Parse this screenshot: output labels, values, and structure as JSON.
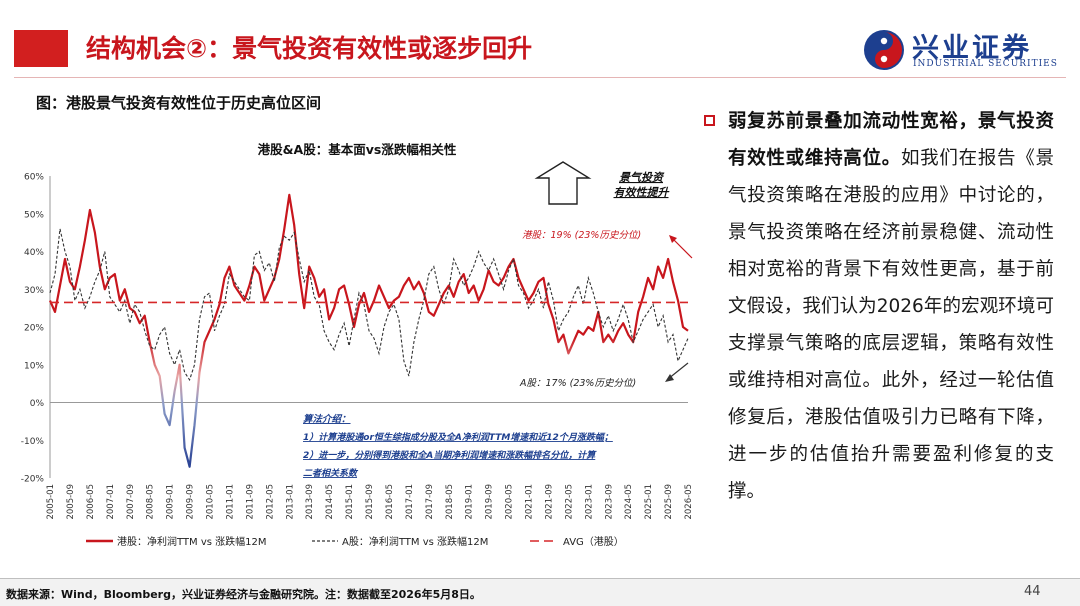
{
  "slide_title": "结构机会②：景气投资有效性或逐步回升",
  "logo": {
    "name_cn": "兴业证券",
    "name_en": "INDUSTRIAL SECURITIES"
  },
  "figure_caption": "图：港股景气投资有效性位于历史高位区间",
  "right_panel": {
    "headline": "弱复苏前景叠加流动性宽裕，景气投资有效性或维持高位。",
    "body": "如我们在报告《景气投资策略在港股的应用》中讨论的，景气投资策略在经济前景稳健、流动性相对宽裕的背景下有效性更高，基于前文假设，我们认为2026年的宏观环境可支撑景气策略的底层逻辑，策略有效性或维持相对高位。此外，经过一轮估值修复后，港股估值吸引力已略有下降，进一步的估值抬升需要盈利修复的支撑。"
  },
  "footer": {
    "source": "数据来源：Wind，Bloomberg，兴业证券经济与金融研究院。注：数据截至2026年5月8日。",
    "page": "44"
  },
  "colors": {
    "accent": "#c8161d",
    "hk_line": "#c8161d",
    "a_line": "#333333",
    "avg_line": "#d62728",
    "logo_blue": "#1d3f8f"
  },
  "chart_data": {
    "type": "line",
    "title": "港股&A股：基本面vs涨跌幅相关性",
    "ylim": [
      -0.2,
      0.6
    ],
    "yticks": [
      -0.2,
      -0.1,
      0.0,
      0.1,
      0.2,
      0.3,
      0.4,
      0.5,
      0.6
    ],
    "ytick_labels": [
      "-20%",
      "-10%",
      "0%",
      "10%",
      "20%",
      "30%",
      "40%",
      "50%",
      "60%"
    ],
    "xlim": [
      "2005-01",
      "2026-05"
    ],
    "xtick_labels": [
      "2005-01",
      "2005-09",
      "2006-05",
      "2007-01",
      "2007-09",
      "2008-05",
      "2009-01",
      "2009-09",
      "2010-05",
      "2011-01",
      "2011-09",
      "2012-05",
      "2013-01",
      "2013-09",
      "2014-05",
      "2015-01",
      "2015-09",
      "2016-05",
      "2017-01",
      "2017-09",
      "2018-05",
      "2019-01",
      "2019-09",
      "2020-05",
      "2021-01",
      "2021-09",
      "2022-05",
      "2023-01",
      "2023-09",
      "2024-05",
      "2025-01",
      "2025-09",
      "2026-05"
    ],
    "x": [
      "2005-01",
      "2005-03",
      "2005-05",
      "2005-07",
      "2005-09",
      "2005-11",
      "2006-01",
      "2006-03",
      "2006-05",
      "2006-07",
      "2006-09",
      "2006-11",
      "2007-01",
      "2007-03",
      "2007-05",
      "2007-07",
      "2007-09",
      "2007-11",
      "2008-01",
      "2008-03",
      "2008-05",
      "2008-07",
      "2008-09",
      "2008-11",
      "2009-01",
      "2009-03",
      "2009-05",
      "2009-07",
      "2009-09",
      "2009-11",
      "2010-01",
      "2010-03",
      "2010-05",
      "2010-07",
      "2010-09",
      "2010-11",
      "2011-01",
      "2011-03",
      "2011-05",
      "2011-07",
      "2011-09",
      "2011-11",
      "2012-01",
      "2012-03",
      "2012-05",
      "2012-07",
      "2012-09",
      "2012-11",
      "2013-01",
      "2013-03",
      "2013-05",
      "2013-07",
      "2013-09",
      "2013-11",
      "2014-01",
      "2014-03",
      "2014-05",
      "2014-07",
      "2014-09",
      "2014-11",
      "2015-01",
      "2015-03",
      "2015-05",
      "2015-07",
      "2015-09",
      "2015-11",
      "2016-01",
      "2016-03",
      "2016-05",
      "2016-07",
      "2016-09",
      "2016-11",
      "2017-01",
      "2017-03",
      "2017-05",
      "2017-07",
      "2017-09",
      "2017-11",
      "2018-01",
      "2018-03",
      "2018-05",
      "2018-07",
      "2018-09",
      "2018-11",
      "2019-01",
      "2019-03",
      "2019-05",
      "2019-07",
      "2019-09",
      "2019-11",
      "2020-01",
      "2020-03",
      "2020-05",
      "2020-07",
      "2020-09",
      "2020-11",
      "2021-01",
      "2021-03",
      "2021-05",
      "2021-07",
      "2021-09",
      "2021-11",
      "2022-01",
      "2022-03",
      "2022-05",
      "2022-07",
      "2022-09",
      "2022-11",
      "2023-01",
      "2023-03",
      "2023-05",
      "2023-07",
      "2023-09",
      "2023-11",
      "2024-01",
      "2024-03",
      "2024-05",
      "2024-07",
      "2024-09",
      "2024-11",
      "2025-01",
      "2025-03",
      "2025-05",
      "2025-07",
      "2025-09",
      "2025-11",
      "2026-01",
      "2026-03",
      "2026-05"
    ],
    "series": [
      {
        "name": "港股：净利润TTM vs 涨跌幅12M",
        "color": "#c8161d",
        "style": "solid",
        "values": [
          0.27,
          0.24,
          0.31,
          0.38,
          0.32,
          0.3,
          0.36,
          0.43,
          0.51,
          0.45,
          0.36,
          0.3,
          0.33,
          0.34,
          0.27,
          0.3,
          0.25,
          0.24,
          0.21,
          0.23,
          0.16,
          0.1,
          0.07,
          -0.03,
          -0.06,
          0.03,
          0.1,
          -0.12,
          -0.17,
          -0.06,
          0.08,
          0.16,
          0.19,
          0.22,
          0.26,
          0.33,
          0.36,
          0.31,
          0.29,
          0.27,
          0.31,
          0.36,
          0.34,
          0.27,
          0.3,
          0.33,
          0.38,
          0.46,
          0.55,
          0.47,
          0.34,
          0.25,
          0.36,
          0.33,
          0.28,
          0.3,
          0.22,
          0.25,
          0.3,
          0.31,
          0.26,
          0.2,
          0.26,
          0.29,
          0.24,
          0.27,
          0.31,
          0.28,
          0.25,
          0.27,
          0.28,
          0.31,
          0.33,
          0.3,
          0.32,
          0.29,
          0.24,
          0.23,
          0.26,
          0.29,
          0.31,
          0.28,
          0.32,
          0.34,
          0.29,
          0.31,
          0.27,
          0.3,
          0.35,
          0.32,
          0.31,
          0.33,
          0.36,
          0.38,
          0.33,
          0.3,
          0.27,
          0.29,
          0.32,
          0.33,
          0.26,
          0.22,
          0.16,
          0.18,
          0.13,
          0.16,
          0.19,
          0.18,
          0.2,
          0.19,
          0.24,
          0.16,
          0.18,
          0.16,
          0.19,
          0.21,
          0.18,
          0.16,
          0.24,
          0.28,
          0.33,
          0.3,
          0.36,
          0.33,
          0.38,
          0.32,
          0.27,
          0.2,
          0.19
        ],
        "annotation": "港股：19% (23%历史分位)"
      },
      {
        "name": "A股：净利润TTM vs 涨跌幅12M",
        "color": "#333333",
        "style": "dashed",
        "values": [
          0.29,
          0.34,
          0.46,
          0.4,
          0.36,
          0.27,
          0.3,
          0.25,
          0.28,
          0.32,
          0.35,
          0.4,
          0.28,
          0.26,
          0.24,
          0.27,
          0.21,
          0.26,
          0.24,
          0.19,
          0.15,
          0.14,
          0.18,
          0.2,
          0.13,
          0.1,
          0.14,
          0.08,
          0.06,
          0.1,
          0.22,
          0.28,
          0.29,
          0.19,
          0.23,
          0.26,
          0.34,
          0.32,
          0.3,
          0.28,
          0.27,
          0.39,
          0.4,
          0.35,
          0.37,
          0.32,
          0.41,
          0.44,
          0.43,
          0.45,
          0.38,
          0.32,
          0.35,
          0.28,
          0.26,
          0.19,
          0.16,
          0.14,
          0.18,
          0.21,
          0.15,
          0.22,
          0.29,
          0.26,
          0.19,
          0.17,
          0.13,
          0.2,
          0.24,
          0.26,
          0.22,
          0.11,
          0.07,
          0.16,
          0.22,
          0.27,
          0.34,
          0.36,
          0.3,
          0.26,
          0.3,
          0.38,
          0.35,
          0.31,
          0.33,
          0.36,
          0.4,
          0.37,
          0.35,
          0.38,
          0.34,
          0.3,
          0.35,
          0.38,
          0.31,
          0.29,
          0.25,
          0.27,
          0.3,
          0.25,
          0.32,
          0.27,
          0.19,
          0.22,
          0.24,
          0.28,
          0.31,
          0.26,
          0.33,
          0.29,
          0.24,
          0.2,
          0.23,
          0.19,
          0.22,
          0.26,
          0.22,
          0.16,
          0.19,
          0.22,
          0.24,
          0.26,
          0.2,
          0.23,
          0.16,
          0.18,
          0.11,
          0.14,
          0.17
        ],
        "annotation": "A股：17% (23%历史分位)"
      },
      {
        "name": "AVG（港股）",
        "color": "#d62728",
        "style": "dashed",
        "constant": 0.265
      }
    ],
    "callout": "景气投资有效性提升",
    "note": {
      "title": "算法介绍：",
      "lines": [
        "1）计算港股通or恒生综指成分股及全A净利润TTM增速和近12个月涨跌幅；",
        "2）进一步，分别得到港股和全A当期净利润增速和涨跌幅排名分位，计算二者相关系数"
      ]
    },
    "legend_position": "bottom",
    "grid": false
  }
}
